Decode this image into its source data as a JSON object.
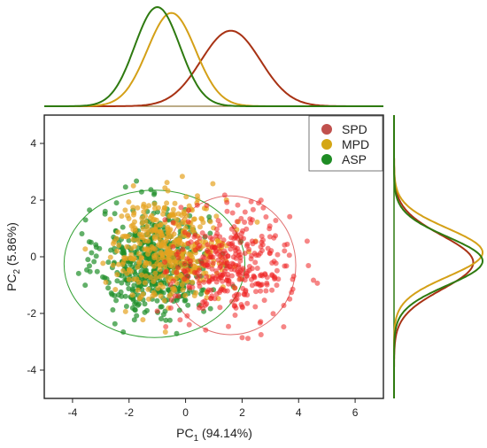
{
  "chart_data": {
    "type": "scatter",
    "xlabel": {
      "base": "PC",
      "sub": "1",
      "rest": " (94.14%)"
    },
    "ylabel": {
      "base": "PC",
      "sub": "2",
      "rest": " (5.86%)"
    },
    "xlim": [
      -5,
      7
    ],
    "ylim": [
      -5,
      5
    ],
    "x_ticks": [
      -4,
      -2,
      0,
      2,
      4,
      6
    ],
    "y_ticks": [
      -4,
      -2,
      0,
      2,
      4
    ],
    "grid": false,
    "legend_position": "top-right",
    "series": [
      {
        "name": "SPD",
        "legend_color": "#c0504d",
        "point_color": "#ee2222",
        "curve_color": "#a83214",
        "mean": [
          1.6,
          -0.3
        ],
        "sd": [
          1.05,
          0.95
        ],
        "n": 360
      },
      {
        "name": "MPD",
        "legend_color": "#d4a615",
        "point_color": "#e6a320",
        "curve_color": "#d4a017",
        "mean": [
          -0.5,
          0.3
        ],
        "sd": [
          1.05,
          0.9
        ],
        "n": 420
      },
      {
        "name": "ASP",
        "legend_color": "#1e8c24",
        "point_color": "#1f8f2a",
        "curve_color": "#2e7a10",
        "mean": [
          -1.1,
          -0.2
        ],
        "sd": [
          0.95,
          0.95
        ],
        "n": 520
      }
    ],
    "confidence_ellipses": [
      {
        "series": "SPD",
        "center": [
          1.6,
          -0.3
        ],
        "rx": 2.3,
        "ry": 2.45,
        "color": "#e07070"
      },
      {
        "series": "ASP",
        "center": [
          -1.1,
          -0.25
        ],
        "rx": 3.2,
        "ry": 2.6,
        "color": "#33a033"
      }
    ],
    "marginal_density": {
      "top": [
        {
          "series": "SPD",
          "mean": 1.6,
          "sd": 1.05
        },
        {
          "series": "MPD",
          "mean": -0.5,
          "sd": 0.85
        },
        {
          "series": "ASP",
          "mean": -1.0,
          "sd": 0.8
        }
      ],
      "right": [
        {
          "series": "SPD",
          "mean": -0.2,
          "sd": 0.95
        },
        {
          "series": "MPD",
          "mean": 0.15,
          "sd": 0.85
        },
        {
          "series": "ASP",
          "mean": -0.15,
          "sd": 0.85
        }
      ]
    }
  }
}
